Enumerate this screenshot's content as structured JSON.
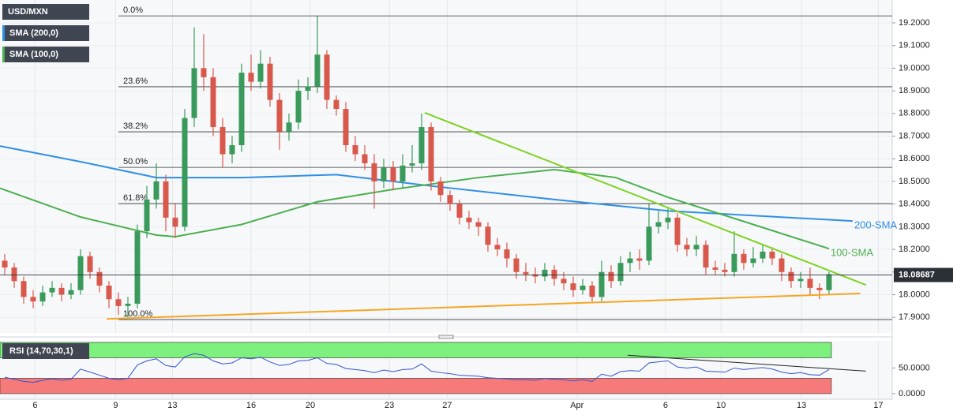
{
  "chart_data": {
    "type": "candlestick",
    "name": "USD/MXN",
    "up_color": "#3a9a5b",
    "down_color": "#d9584c",
    "ohlc": [
      [
        18.15,
        18.18,
        18.09,
        18.12
      ],
      [
        18.12,
        18.14,
        18.03,
        18.06
      ],
      [
        18.06,
        18.08,
        17.96,
        17.99
      ],
      [
        17.99,
        18.02,
        17.94,
        17.97
      ],
      [
        17.97,
        18.04,
        17.95,
        18.01
      ],
      [
        18.01,
        18.06,
        17.99,
        18.03
      ],
      [
        18.03,
        18.05,
        17.97,
        18.0
      ],
      [
        18.0,
        18.05,
        17.98,
        18.02
      ],
      [
        18.02,
        18.2,
        18.0,
        18.17
      ],
      [
        18.17,
        18.19,
        18.07,
        18.1
      ],
      [
        18.1,
        18.12,
        18.01,
        18.04
      ],
      [
        18.04,
        18.06,
        17.94,
        17.98
      ],
      [
        17.98,
        18.01,
        17.91,
        17.95
      ],
      [
        17.95,
        17.99,
        17.9,
        17.96
      ],
      [
        17.96,
        18.31,
        17.94,
        18.28
      ],
      [
        18.28,
        18.48,
        18.25,
        18.42
      ],
      [
        18.42,
        18.58,
        18.38,
        18.5
      ],
      [
        18.5,
        18.53,
        18.28,
        18.34
      ],
      [
        18.34,
        18.4,
        18.25,
        18.3
      ],
      [
        18.3,
        18.82,
        18.28,
        18.78
      ],
      [
        18.78,
        19.18,
        18.74,
        19.0
      ],
      [
        19.0,
        19.15,
        18.9,
        18.96
      ],
      [
        18.96,
        19.0,
        18.7,
        18.74
      ],
      [
        18.74,
        18.78,
        18.56,
        18.62
      ],
      [
        18.62,
        18.7,
        18.58,
        18.66
      ],
      [
        18.66,
        19.02,
        18.63,
        18.98
      ],
      [
        18.98,
        19.06,
        18.9,
        18.94
      ],
      [
        18.94,
        19.08,
        18.91,
        19.02
      ],
      [
        19.02,
        19.05,
        18.83,
        18.86
      ],
      [
        18.86,
        18.89,
        18.64,
        18.72
      ],
      [
        18.72,
        18.8,
        18.68,
        18.76
      ],
      [
        18.76,
        18.95,
        18.73,
        18.9
      ],
      [
        18.9,
        18.96,
        18.86,
        18.92
      ],
      [
        18.92,
        19.23,
        18.89,
        19.06
      ],
      [
        19.06,
        19.08,
        18.82,
        18.86
      ],
      [
        18.86,
        18.88,
        18.79,
        18.82
      ],
      [
        18.82,
        18.85,
        18.63,
        18.66
      ],
      [
        18.66,
        18.7,
        18.59,
        18.62
      ],
      [
        18.62,
        18.66,
        18.55,
        18.58
      ],
      [
        18.58,
        18.62,
        18.38,
        18.5
      ],
      [
        18.5,
        18.6,
        18.47,
        18.56
      ],
      [
        18.56,
        18.59,
        18.46,
        18.5
      ],
      [
        18.5,
        18.62,
        18.47,
        18.57
      ],
      [
        18.57,
        18.66,
        18.54,
        18.58
      ],
      [
        18.58,
        18.8,
        18.55,
        18.74
      ],
      [
        18.74,
        18.76,
        18.46,
        18.5
      ],
      [
        18.5,
        18.52,
        18.41,
        18.44
      ],
      [
        18.44,
        18.46,
        18.37,
        18.4
      ],
      [
        18.4,
        18.42,
        18.31,
        18.34
      ],
      [
        18.34,
        18.37,
        18.29,
        18.32
      ],
      [
        18.32,
        18.34,
        18.26,
        18.3
      ],
      [
        18.3,
        18.32,
        18.19,
        18.22
      ],
      [
        18.22,
        18.25,
        18.17,
        18.2
      ],
      [
        18.2,
        18.23,
        18.12,
        18.16
      ],
      [
        18.16,
        18.18,
        18.07,
        18.1
      ],
      [
        18.1,
        18.14,
        18.06,
        18.09
      ],
      [
        18.09,
        18.12,
        18.05,
        18.08
      ],
      [
        18.08,
        18.14,
        18.06,
        18.11
      ],
      [
        18.11,
        18.13,
        18.04,
        18.07
      ],
      [
        18.07,
        18.1,
        18.02,
        18.05
      ],
      [
        18.05,
        18.08,
        17.99,
        18.02
      ],
      [
        18.02,
        18.07,
        18.0,
        18.04
      ],
      [
        18.04,
        18.06,
        17.97,
        17.99
      ],
      [
        17.99,
        18.15,
        17.97,
        18.1
      ],
      [
        18.1,
        18.13,
        18.03,
        18.06
      ],
      [
        18.06,
        18.17,
        18.04,
        18.14
      ],
      [
        18.14,
        18.19,
        18.1,
        18.16
      ],
      [
        18.16,
        18.2,
        18.11,
        18.15
      ],
      [
        18.15,
        18.4,
        18.13,
        18.3
      ],
      [
        18.3,
        18.37,
        18.27,
        18.32
      ],
      [
        18.32,
        18.38,
        18.29,
        18.34
      ],
      [
        18.34,
        18.36,
        18.19,
        18.22
      ],
      [
        18.22,
        18.25,
        18.17,
        18.2
      ],
      [
        18.2,
        18.26,
        18.17,
        18.22
      ],
      [
        18.22,
        18.24,
        18.09,
        18.12
      ],
      [
        18.12,
        18.15,
        18.09,
        18.11
      ],
      [
        18.11,
        18.14,
        18.08,
        18.1
      ],
      [
        18.1,
        18.28,
        18.08,
        18.18
      ],
      [
        18.18,
        18.2,
        18.11,
        18.14
      ],
      [
        18.14,
        18.21,
        18.12,
        18.16
      ],
      [
        18.16,
        18.22,
        18.14,
        18.19
      ],
      [
        18.19,
        18.21,
        18.13,
        18.16
      ],
      [
        18.16,
        18.18,
        18.06,
        18.1
      ],
      [
        18.1,
        18.12,
        18.03,
        18.06
      ],
      [
        18.06,
        18.1,
        18.03,
        18.07
      ],
      [
        18.07,
        18.12,
        18.0,
        18.03
      ],
      [
        18.03,
        18.05,
        17.98,
        18.02
      ],
      [
        18.02,
        18.1,
        18.0,
        18.09
      ]
    ],
    "xlim": [
      -0.5,
      93.67
    ],
    "xticks": [
      {
        "value": 3.2,
        "label": "6"
      },
      {
        "value": 11.7,
        "label": "9"
      },
      {
        "value": 17.7,
        "label": "13"
      },
      {
        "value": 26,
        "label": "16"
      },
      {
        "value": 32.25,
        "label": "20"
      },
      {
        "value": 40.6,
        "label": "23"
      },
      {
        "value": 46.7,
        "label": "27"
      },
      {
        "value": 60.4,
        "label": "Apr"
      },
      {
        "value": 69.75,
        "label": "6"
      },
      {
        "value": 75.6,
        "label": "10"
      },
      {
        "value": 84.1,
        "label": "13"
      },
      {
        "value": 92.2,
        "label": "17"
      }
    ],
    "ylim": [
      17.831,
      19.301
    ],
    "yticks": [
      {
        "value": 17.9,
        "label": "17.9000"
      },
      {
        "value": 18.0,
        "label": "18.0000"
      },
      {
        "value": 18.1,
        "label": "18.1000"
      },
      {
        "value": 18.2,
        "label": "18.2000"
      },
      {
        "value": 18.3,
        "label": "18.3000"
      },
      {
        "value": 18.4,
        "label": "18.4000"
      },
      {
        "value": 18.5,
        "label": "18.5000"
      },
      {
        "value": 18.6,
        "label": "18.6000"
      },
      {
        "value": 18.7,
        "label": "18.7000"
      },
      {
        "value": 18.8,
        "label": "18.8000"
      },
      {
        "value": 18.9,
        "label": "18.9000"
      },
      {
        "value": 19.0,
        "label": "19.0000"
      },
      {
        "value": 19.1,
        "label": "19.1000"
      },
      {
        "value": 19.2,
        "label": "19.2000"
      }
    ],
    "grid": true,
    "lines": [
      {
        "name": "SMA (200,0)",
        "label": "200-SMA",
        "color": "#2f8fe6",
        "x": [
          -0.5,
          8,
          16,
          25,
          35,
          45,
          58,
          70,
          89.5
        ],
        "values": [
          18.656,
          18.587,
          18.517,
          18.517,
          18.53,
          18.48,
          18.42,
          18.37,
          18.325
        ]
      },
      {
        "name": "SMA (100,0)",
        "label": "100-SMA",
        "color": "#4caf50",
        "x": [
          -0.5,
          8,
          16,
          18,
          25,
          33,
          41,
          50,
          58,
          64.5,
          70,
          79,
          87
        ],
        "values": [
          18.47,
          18.343,
          18.263,
          18.256,
          18.31,
          18.41,
          18.465,
          18.517,
          18.552,
          18.517,
          18.43,
          18.31,
          18.203
        ]
      }
    ],
    "fib_levels": [
      {
        "label": "0.0%",
        "value": 19.231
      },
      {
        "label": "23.6%",
        "value": 18.918
      },
      {
        "label": "38.2%",
        "value": 18.719
      },
      {
        "label": "50.0%",
        "value": 18.562
      },
      {
        "label": "61.8%",
        "value": 18.402
      },
      {
        "label": "100.0%",
        "value": 17.89
      }
    ],
    "trendlines": [
      {
        "color": "#7ed321",
        "x": [
          44.33,
          90.9
        ],
        "values": [
          18.803,
          18.043
        ]
      },
      {
        "color": "#f5a623",
        "x": [
          10.75,
          90.3
        ],
        "values": [
          17.893,
          18.005
        ]
      }
    ],
    "last_price": 18.08687,
    "rsi": {
      "title": "RSI (14,70,30,1)",
      "color": "#3355cc",
      "values": [
        32,
        28,
        24,
        22,
        26,
        29,
        26,
        28,
        48,
        42,
        36,
        30,
        27,
        30,
        56,
        64,
        68,
        55,
        52,
        72,
        78,
        75,
        64,
        58,
        60,
        70,
        68,
        71,
        62,
        55,
        57,
        64,
        65,
        70,
        59,
        57,
        49,
        47,
        45,
        41,
        46,
        43,
        47,
        48,
        58,
        44,
        41,
        39,
        36,
        35,
        34,
        31,
        30,
        29,
        27,
        27,
        26,
        30,
        28,
        27,
        25,
        27,
        24,
        38,
        34,
        43,
        45,
        44,
        60,
        62,
        64,
        52,
        50,
        52,
        44,
        43,
        42,
        50,
        47,
        49,
        51,
        48,
        42,
        39,
        41,
        37,
        36,
        47
      ],
      "ylim": [
        -10.9,
        103.1
      ],
      "yticks": [
        {
          "value": 0,
          "label": "0.0000"
        },
        {
          "value": 50,
          "label": "50.0000"
        }
      ],
      "upper_band": [
        70,
        100
      ],
      "lower_band": [
        0,
        30
      ],
      "trendline": {
        "x": [
          65.75,
          90.9
        ],
        "values": [
          75,
          44
        ]
      }
    }
  }
}
